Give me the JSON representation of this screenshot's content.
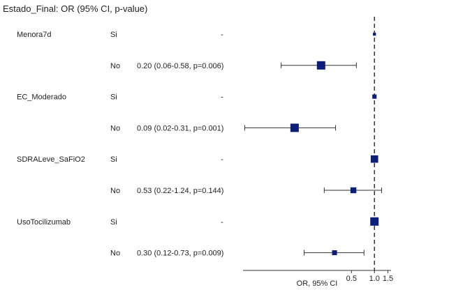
{
  "chart_data": {
    "type": "forest",
    "title": "Estado_Final: OR (95% CI, p-value)",
    "xlabel": "OR, 95% CI",
    "x_ticks": [
      "0.5",
      "1.0",
      "1.5"
    ],
    "x_tick_values": [
      0.5,
      1.0,
      1.5
    ],
    "x_scale": "log",
    "xlim": [
      0.019,
      1.65
    ],
    "reference_line": 1.0,
    "colors": {
      "marker": "#0b1f7a",
      "line": "#333333"
    },
    "rows": [
      {
        "variable": "Menora7d",
        "level": "Si",
        "text": "-",
        "or": 1.0,
        "lo": null,
        "hi": null,
        "weight": 0.15
      },
      {
        "variable": "",
        "level": "No",
        "text": "0.20 (0.06-0.58, p=0.006)",
        "or": 0.2,
        "lo": 0.06,
        "hi": 0.58,
        "weight": 1.0
      },
      {
        "variable": "EC_Moderado",
        "level": "Si",
        "text": "-",
        "or": 1.0,
        "lo": null,
        "hi": null,
        "weight": 0.35
      },
      {
        "variable": "",
        "level": "No",
        "text": "0.09 (0.02-0.31, p=0.001)",
        "or": 0.09,
        "lo": 0.02,
        "hi": 0.31,
        "weight": 1.0
      },
      {
        "variable": "SDRALeve_SaFiO2",
        "level": "Si",
        "text": "-",
        "or": 1.0,
        "lo": null,
        "hi": null,
        "weight": 0.85
      },
      {
        "variable": "",
        "level": "No",
        "text": "0.53 (0.22-1.24, p=0.144)",
        "or": 0.53,
        "lo": 0.22,
        "hi": 1.24,
        "weight": 0.6
      },
      {
        "variable": "UsoTocilizumab",
        "level": "Si",
        "text": "-",
        "or": 1.0,
        "lo": null,
        "hi": null,
        "weight": 1.0
      },
      {
        "variable": "",
        "level": "No",
        "text": "0.30 (0.12-0.73, p=0.009)",
        "or": 0.3,
        "lo": 0.12,
        "hi": 0.73,
        "weight": 0.45
      }
    ]
  }
}
